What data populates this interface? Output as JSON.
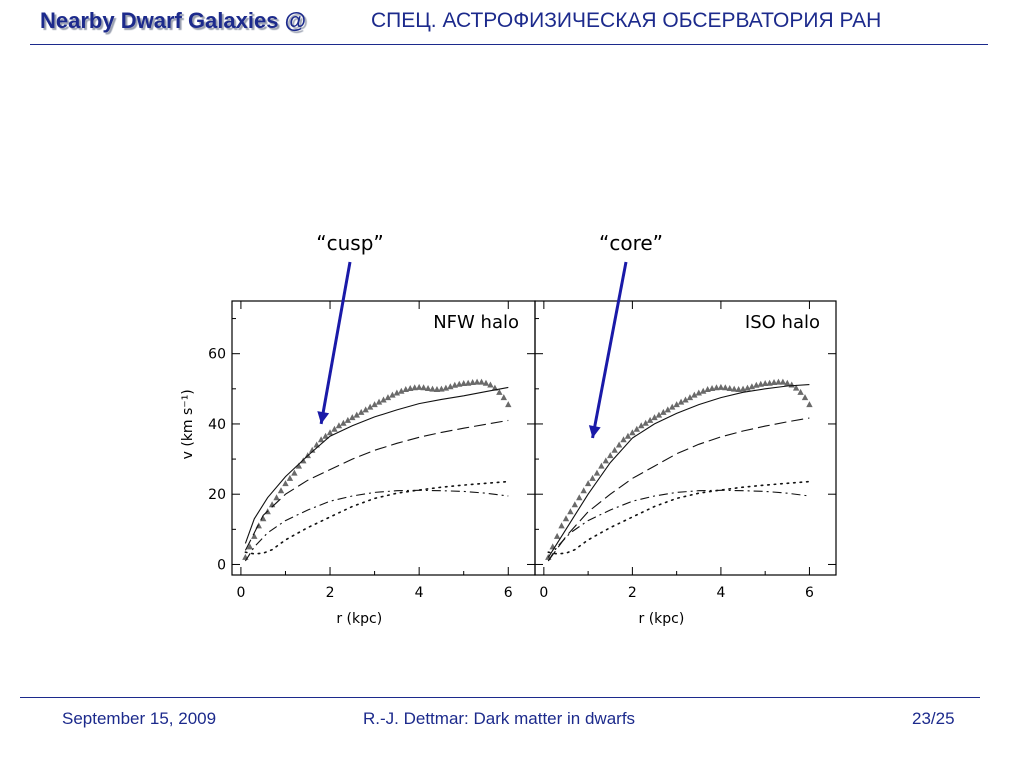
{
  "header": {
    "title": "Nearby Dwarf Galaxies @",
    "institution": "СПЕЦ. АСТРОФИЗИЧЕСКАЯ ОБСЕРВАТОРИЯ РАН",
    "accent_color": "#1c2a8c"
  },
  "footer": {
    "date": "September 15, 2009",
    "talk": "R.-J. Dettmar: Dark matter in dwarfs",
    "page": "23/25"
  },
  "annotations": {
    "cusp": "“cusp”",
    "core": "“core”",
    "arrow_color": "#1a1aa8"
  },
  "chart_data": [
    {
      "type": "line",
      "panel_label": "NFW halo",
      "xlabel": "r (kpc)",
      "ylabel": "v (km s⁻¹)",
      "xlim": [
        -0.2,
        6.6
      ],
      "ylim": [
        -3,
        75
      ],
      "xticks": [
        0,
        2,
        4,
        6
      ],
      "yticks": [
        0,
        20,
        40,
        60
      ],
      "series": [
        {
          "role": "observed",
          "style": "triangles",
          "x": [
            0.1,
            0.2,
            0.3,
            0.4,
            0.5,
            0.6,
            0.7,
            0.8,
            0.9,
            1.0,
            1.1,
            1.2,
            1.3,
            1.4,
            1.5,
            1.6,
            1.7,
            1.8,
            1.9,
            2.0,
            2.1,
            2.2,
            2.3,
            2.4,
            2.5,
            2.6,
            2.7,
            2.8,
            2.9,
            3.0,
            3.1,
            3.2,
            3.3,
            3.4,
            3.5,
            3.6,
            3.7,
            3.8,
            3.9,
            4.0,
            4.1,
            4.2,
            4.3,
            4.4,
            4.5,
            4.6,
            4.7,
            4.8,
            4.9,
            5.0,
            5.1,
            5.2,
            5.3,
            5.4,
            5.5,
            5.6,
            5.7,
            5.8,
            5.9,
            6.0
          ],
          "y": [
            2,
            5,
            8,
            11,
            13,
            15,
            17,
            19,
            21,
            23,
            24.5,
            26,
            28,
            29.5,
            31,
            32.5,
            34,
            35.5,
            36.5,
            37.5,
            38.5,
            39.5,
            40.2,
            41,
            41.8,
            42.5,
            43.3,
            44,
            44.8,
            45.5,
            46.2,
            46.8,
            47.5,
            48.2,
            48.8,
            49.3,
            49.8,
            50.1,
            50.3,
            50.4,
            50.3,
            50.1,
            49.9,
            49.8,
            49.9,
            50.2,
            50.6,
            51,
            51.3,
            51.5,
            51.6,
            51.8,
            51.9,
            51.9,
            51.6,
            51.1,
            50.2,
            49,
            47.5,
            45.5
          ]
        },
        {
          "role": "total-fit",
          "style": "solid",
          "x": [
            0.1,
            0.3,
            0.6,
            1.0,
            1.5,
            2.0,
            2.5,
            3.0,
            3.5,
            4.0,
            4.5,
            5.0,
            5.5,
            6.0
          ],
          "y": [
            6,
            13,
            19,
            25,
            31,
            36.5,
            39.5,
            42,
            44,
            45.8,
            47,
            48,
            49.2,
            50.4
          ]
        },
        {
          "role": "halo",
          "style": "dashed",
          "x": [
            0.1,
            0.5,
            1.0,
            1.5,
            2.0,
            2.5,
            3.0,
            3.5,
            4.0,
            4.5,
            5.0,
            5.5,
            6.0
          ],
          "y": [
            4,
            14,
            20,
            24,
            27,
            30,
            32.5,
            34.5,
            36.2,
            37.6,
            38.8,
            39.9,
            41
          ]
        },
        {
          "role": "disk",
          "style": "dash-dot",
          "x": [
            0.1,
            0.3,
            0.6,
            1.0,
            1.5,
            2.0,
            2.5,
            3.0,
            3.5,
            4.0,
            4.5,
            5.0,
            5.5,
            6.0
          ],
          "y": [
            1,
            5,
            9,
            12.5,
            15.5,
            18,
            19.5,
            20.5,
            21,
            21.1,
            21,
            20.8,
            20.3,
            19.5
          ]
        },
        {
          "role": "gas",
          "style": "dotted",
          "x": [
            0.1,
            0.3,
            0.5,
            0.7,
            1.0,
            1.5,
            2.0,
            2.5,
            3.0,
            3.5,
            4.0,
            4.5,
            5.0,
            5.5,
            6.0
          ],
          "y": [
            3.5,
            3,
            3.2,
            4.2,
            7,
            10.5,
            13.5,
            16.5,
            18.8,
            20.3,
            21.2,
            22,
            22.6,
            23.1,
            23.6
          ]
        }
      ]
    },
    {
      "type": "line",
      "panel_label": "ISO halo",
      "xlabel": "r (kpc)",
      "ylabel": "",
      "xlim": [
        -0.2,
        6.6
      ],
      "ylim": [
        -3,
        75
      ],
      "xticks": [
        0,
        2,
        4,
        6
      ],
      "yticks": [],
      "series": [
        {
          "role": "observed",
          "style": "triangles",
          "x": [
            0.1,
            0.2,
            0.3,
            0.4,
            0.5,
            0.6,
            0.7,
            0.8,
            0.9,
            1.0,
            1.1,
            1.2,
            1.3,
            1.4,
            1.5,
            1.6,
            1.7,
            1.8,
            1.9,
            2.0,
            2.1,
            2.2,
            2.3,
            2.4,
            2.5,
            2.6,
            2.7,
            2.8,
            2.9,
            3.0,
            3.1,
            3.2,
            3.3,
            3.4,
            3.5,
            3.6,
            3.7,
            3.8,
            3.9,
            4.0,
            4.1,
            4.2,
            4.3,
            4.4,
            4.5,
            4.6,
            4.7,
            4.8,
            4.9,
            5.0,
            5.1,
            5.2,
            5.3,
            5.4,
            5.5,
            5.6,
            5.7,
            5.8,
            5.9,
            6.0
          ],
          "y": [
            2,
            5,
            8,
            11,
            13,
            15,
            17,
            19,
            21,
            23,
            24.5,
            26,
            28,
            29.5,
            31,
            32.5,
            34,
            35.5,
            36.5,
            37.5,
            38.5,
            39.5,
            40.2,
            41,
            41.8,
            42.5,
            43.3,
            44,
            44.8,
            45.5,
            46.2,
            46.8,
            47.5,
            48.2,
            48.8,
            49.3,
            49.8,
            50.1,
            50.3,
            50.4,
            50.3,
            50.1,
            49.9,
            49.8,
            49.9,
            50.2,
            50.6,
            51,
            51.3,
            51.5,
            51.6,
            51.8,
            51.9,
            51.9,
            51.6,
            51.1,
            50.2,
            49,
            47.5,
            45.5
          ]
        },
        {
          "role": "total-fit",
          "style": "solid",
          "x": [
            0.1,
            0.3,
            0.6,
            1.0,
            1.5,
            2.0,
            2.5,
            3.0,
            3.5,
            4.0,
            4.5,
            5.0,
            5.5,
            6.0
          ],
          "y": [
            2,
            6,
            12,
            20,
            29,
            36,
            40,
            43,
            45.5,
            47.5,
            49,
            50,
            50.8,
            51.2
          ]
        },
        {
          "role": "halo",
          "style": "dashed",
          "x": [
            0.1,
            0.5,
            1.0,
            1.5,
            2.0,
            2.5,
            3.0,
            3.5,
            4.0,
            4.5,
            5.0,
            5.5,
            6.0
          ],
          "y": [
            1,
            8,
            15,
            20,
            24.5,
            28,
            31.5,
            34.2,
            36.3,
            38,
            39.4,
            40.6,
            41.7
          ]
        },
        {
          "role": "disk",
          "style": "dash-dot",
          "x": [
            0.1,
            0.3,
            0.6,
            1.0,
            1.5,
            2.0,
            2.5,
            3.0,
            3.5,
            4.0,
            4.5,
            5.0,
            5.5,
            6.0
          ],
          "y": [
            1,
            5,
            9,
            12.5,
            15.5,
            18,
            19.5,
            20.5,
            21,
            21.1,
            21,
            20.8,
            20.3,
            19.5
          ]
        },
        {
          "role": "gas",
          "style": "dotted",
          "x": [
            0.1,
            0.3,
            0.5,
            0.7,
            1.0,
            1.5,
            2.0,
            2.5,
            3.0,
            3.5,
            4.0,
            4.5,
            5.0,
            5.5,
            6.0
          ],
          "y": [
            3.5,
            3,
            3.2,
            4.2,
            7,
            10.5,
            13.5,
            16.5,
            18.8,
            20.3,
            21.2,
            22,
            22.6,
            23.1,
            23.6
          ]
        }
      ]
    }
  ]
}
